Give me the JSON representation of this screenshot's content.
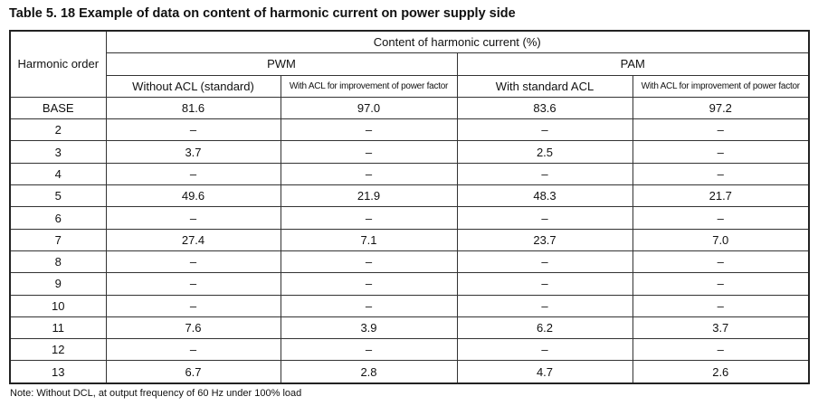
{
  "header": {
    "title": "Table 5. 18  Example of data on content of harmonic current on power supply side"
  },
  "table": {
    "order_label": "Harmonic order",
    "group_label": "Content of harmonic current (%)",
    "groups": [
      "PWM",
      "PAM"
    ],
    "columns": [
      "Without ACL (standard)",
      "With ACL for improvement of power factor",
      "With standard ACL",
      "With ACL for improvement of power factor"
    ],
    "rows": [
      [
        "BASE",
        "81.6",
        "97.0",
        "83.6",
        "97.2"
      ],
      [
        "2",
        "–",
        "–",
        "–",
        "–"
      ],
      [
        "3",
        "3.7",
        "–",
        "2.5",
        "–"
      ],
      [
        "4",
        "–",
        "–",
        "–",
        "–"
      ],
      [
        "5",
        "49.6",
        "21.9",
        "48.3",
        "21.7"
      ],
      [
        "6",
        "–",
        "–",
        "–",
        "–"
      ],
      [
        "7",
        "27.4",
        "7.1",
        "23.7",
        "7.0"
      ],
      [
        "8",
        "–",
        "–",
        "–",
        "–"
      ],
      [
        "9",
        "–",
        "–",
        "–",
        "–"
      ],
      [
        "10",
        "–",
        "–",
        "–",
        "–"
      ],
      [
        "11",
        "7.6",
        "3.9",
        "6.2",
        "3.7"
      ],
      [
        "12",
        "–",
        "–",
        "–",
        "–"
      ],
      [
        "13",
        "6.7",
        "2.8",
        "4.7",
        "2.6"
      ]
    ]
  },
  "note": "Note: Without DCL, at output frequency of 60 Hz under 100% load"
}
